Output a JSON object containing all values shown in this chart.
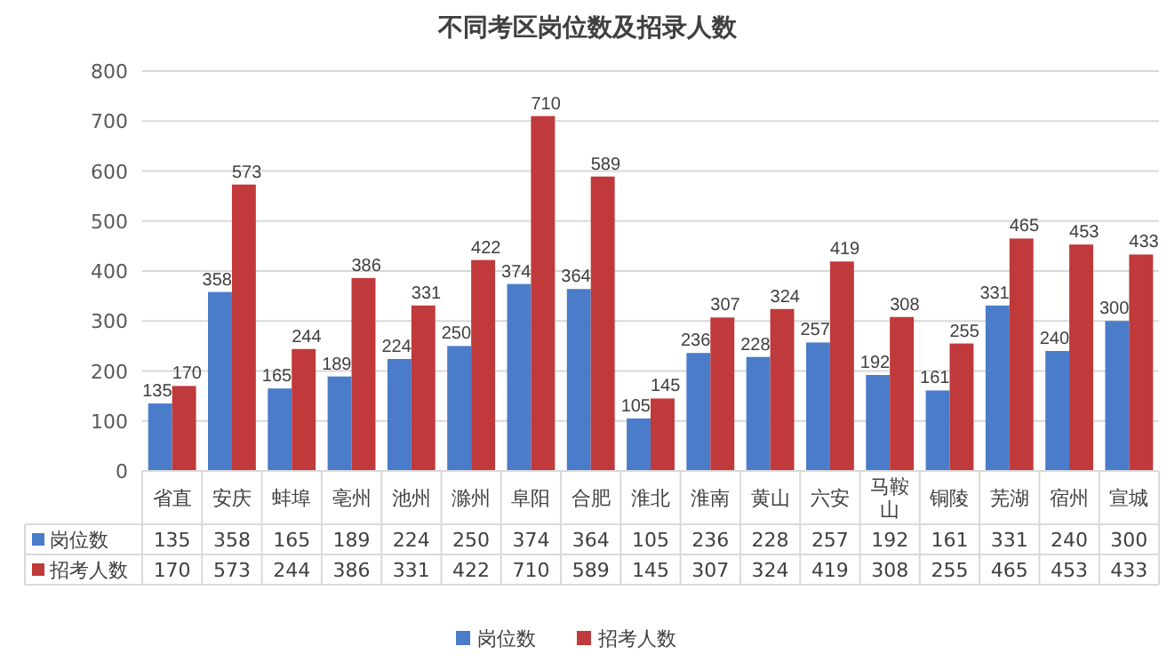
{
  "chart_data": {
    "type": "bar",
    "title": "不同考区岗位数及招录人数",
    "categories": [
      "省直",
      "安庆",
      "蚌埠",
      "亳州",
      "池州",
      "滁州",
      "阜阳",
      "合肥",
      "淮北",
      "淮南",
      "黄山",
      "六安",
      "马鞍山",
      "铜陵",
      "芜湖",
      "宿州",
      "宣城"
    ],
    "series": [
      {
        "name": "岗位数",
        "color": "#4a7cc9",
        "values": [
          135,
          358,
          165,
          189,
          224,
          250,
          374,
          364,
          105,
          236,
          228,
          257,
          192,
          161,
          331,
          240,
          300
        ],
        "value_labels": [
          "135",
          "358",
          "165",
          "189",
          "224",
          "250",
          "374",
          "364",
          "105",
          "236",
          "228",
          "257",
          "192",
          "161",
          "331",
          "240",
          "300"
        ]
      },
      {
        "name": "招考人数",
        "color": "#c0393b",
        "values": [
          170,
          573,
          244,
          386,
          331,
          422,
          710,
          589,
          145,
          307,
          324,
          419,
          308,
          255,
          465,
          453,
          433
        ],
        "value_labels": [
          "170",
          "573",
          "244",
          "386",
          "331",
          "422",
          "710",
          "589",
          "145",
          "307",
          "324",
          "419",
          "308",
          "255",
          "465",
          "453",
          "433"
        ]
      }
    ],
    "ylim": [
      0,
      800
    ],
    "yticks": [
      0,
      100,
      200,
      300,
      400,
      500,
      600,
      700,
      800
    ],
    "grid": "y",
    "legend": "bottom",
    "data_labels": true
  }
}
